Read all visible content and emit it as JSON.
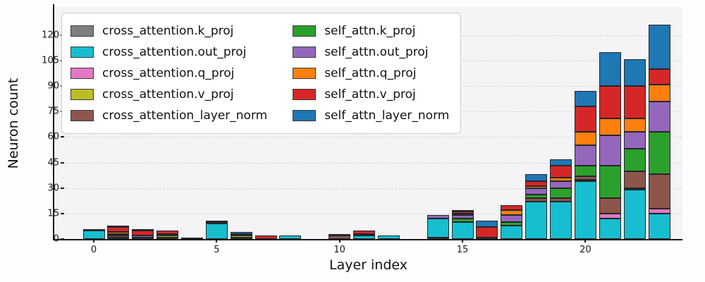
{
  "chart_data": {
    "type": "bar",
    "stacked": true,
    "title": "",
    "xlabel": "Layer index",
    "ylabel": "Neuron count",
    "x": [
      0,
      1,
      2,
      3,
      4,
      5,
      6,
      7,
      8,
      9,
      10,
      11,
      12,
      13,
      14,
      15,
      16,
      17,
      18,
      19,
      20,
      21,
      22,
      23
    ],
    "xticks": [
      "0",
      "5",
      "10",
      "15",
      "20"
    ],
    "xtick_positions": [
      0,
      5,
      10,
      15,
      20
    ],
    "yticks": [
      "0",
      "15",
      "30",
      "45",
      "60",
      "75",
      "90",
      "105",
      "120"
    ],
    "ytick_values": [
      0,
      15,
      30,
      45,
      60,
      75,
      90,
      105,
      120
    ],
    "ylim": [
      0,
      136.5
    ],
    "grid": "horizontal-dashed",
    "legend_position": "upper left",
    "legend_columns": 2,
    "series": [
      {
        "name": "cross_attention.k_proj",
        "color": "#7f7f7f",
        "values": [
          0,
          0,
          0,
          0,
          0,
          0,
          0,
          0,
          0,
          0,
          0,
          0,
          0,
          0,
          1,
          0,
          0,
          0,
          0,
          0,
          0,
          0,
          0,
          0
        ]
      },
      {
        "name": "cross_attention.out_proj",
        "color": "#17becf",
        "values": [
          5,
          0,
          0,
          0,
          0,
          9,
          1,
          0,
          2,
          0,
          0,
          2,
          2,
          0,
          11,
          10,
          0,
          8,
          22,
          22,
          34,
          12,
          29,
          15
        ]
      },
      {
        "name": "cross_attention.q_proj",
        "color": "#e377c2",
        "values": [
          0,
          0,
          0,
          1,
          0,
          0,
          0,
          0,
          0,
          0,
          0,
          0,
          0,
          0,
          0,
          0,
          0,
          0,
          0,
          0,
          1,
          3,
          1,
          3
        ]
      },
      {
        "name": "cross_attention.v_proj",
        "color": "#bcbd22",
        "values": [
          1,
          1,
          1,
          1,
          0,
          0,
          1,
          0,
          0,
          0,
          0,
          0,
          0,
          0,
          0,
          0,
          0,
          0,
          0,
          0,
          0,
          0,
          0,
          0
        ]
      },
      {
        "name": "cross_attention_layer_norm",
        "color": "#8c564b",
        "values": [
          0,
          1,
          0,
          0,
          0,
          0,
          0,
          0,
          0,
          0,
          2,
          0,
          0,
          0,
          0,
          0,
          0,
          0,
          2,
          2,
          2,
          9,
          10,
          20
        ]
      },
      {
        "name": "self_attn.k_proj",
        "color": "#2ca02c",
        "values": [
          0,
          1,
          0,
          1,
          0,
          1,
          1,
          0,
          0,
          0,
          1,
          1,
          0,
          0,
          0,
          2,
          1,
          2,
          2,
          6,
          6,
          19,
          13,
          25
        ]
      },
      {
        "name": "self_attn.out_proj",
        "color": "#9467bd",
        "values": [
          0,
          0,
          1,
          0,
          0,
          0,
          0,
          0,
          0,
          0,
          0,
          0,
          0,
          0,
          2,
          2,
          0,
          4,
          4,
          4,
          12,
          18,
          10,
          18
        ]
      },
      {
        "name": "self_attn.q_proj",
        "color": "#ff7f0e",
        "values": [
          0,
          1,
          0,
          0,
          0,
          0,
          0,
          0,
          0,
          0,
          0,
          0,
          0,
          0,
          0,
          1,
          0,
          3,
          1,
          2,
          8,
          10,
          8,
          10
        ]
      },
      {
        "name": "self_attn.v_proj",
        "color": "#d62728",
        "values": [
          0,
          3,
          3,
          2,
          1,
          0,
          0,
          2,
          0,
          0,
          0,
          2,
          0,
          0,
          0,
          1,
          6,
          3,
          3,
          7,
          15,
          19,
          19,
          9
        ]
      },
      {
        "name": "self_attn_layer_norm",
        "color": "#1f77b4",
        "values": [
          0,
          1,
          1,
          0,
          0,
          1,
          1,
          0,
          0,
          0,
          0,
          0,
          0,
          0,
          0,
          1,
          4,
          0,
          4,
          4,
          9,
          20,
          16,
          26
        ]
      }
    ]
  }
}
